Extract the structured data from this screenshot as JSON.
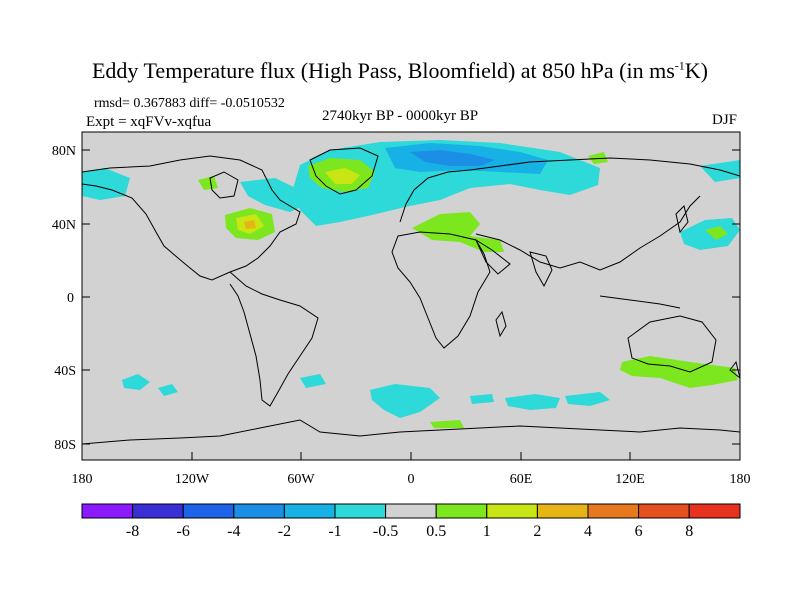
{
  "title": {
    "main": "Eddy Temperature flux (High Pass, Bloomfield) at 850 hPa (in ms",
    "sup": "-1",
    "tail": "K)"
  },
  "stats": "rmsd= 0.367883 diff= -0.0510532",
  "expt": "Expt = xqFVv-xqfua",
  "period": "2740kyr BP - 0000kyr BP",
  "season": "DJF",
  "axes": {
    "y_ticks": [
      "80N",
      "40N",
      "0",
      "40S",
      "80S"
    ],
    "x_ticks": [
      "180",
      "120W",
      "60W",
      "0",
      "60E",
      "120E",
      "180"
    ]
  },
  "colorbar": {
    "labels": [
      "-8",
      "-6",
      "-4",
      "-2",
      "-1",
      "-0.5",
      "0.5",
      "1",
      "2",
      "4",
      "6",
      "8"
    ],
    "colors": [
      "#8c1aff",
      "#3a2fd6",
      "#1e64e8",
      "#1b8fe6",
      "#17b1e6",
      "#2dd9d9",
      "#d2d2d2",
      "#7ce61e",
      "#c8e614",
      "#e6b414",
      "#e6781e",
      "#e6501e",
      "#e6321e"
    ]
  },
  "map_colors": {
    "ocean_land": "#d2d2d2",
    "neg_weak": "#2dd9d9",
    "neg_mid": "#17b1e6",
    "neg_strong": "#1b8fe6",
    "pos_weak": "#7ce61e",
    "pos_mid": "#c8e614",
    "pos_strong": "#e6b414"
  }
}
